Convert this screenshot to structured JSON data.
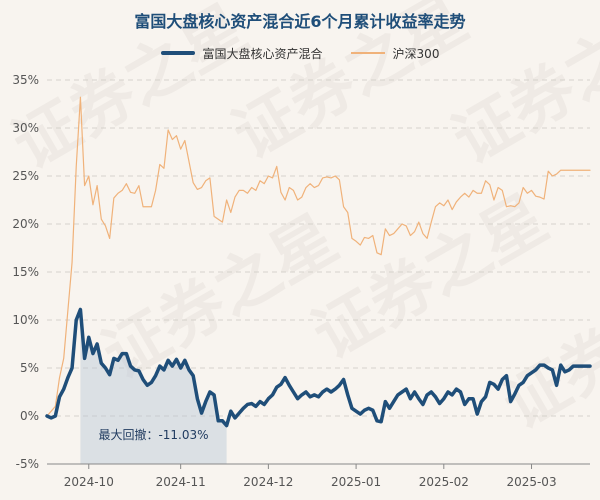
{
  "chart_data": {
    "type": "line",
    "title": "富国大盘核心资产混合近6个月累计收益率走势",
    "ylim": [
      -5,
      35
    ],
    "yticks": [
      35,
      30,
      25,
      20,
      15,
      10,
      5,
      0,
      -5
    ],
    "ytick_labels": [
      "35%",
      "30%",
      "25%",
      "20%",
      "15%",
      "10%",
      "5%",
      "0%",
      "-5%"
    ],
    "xticks": [
      {
        "index": 10,
        "label": "2024-10"
      },
      {
        "index": 32,
        "label": "2024-11"
      },
      {
        "index": 53,
        "label": "2024-12"
      },
      {
        "index": 74,
        "label": "2025-01"
      },
      {
        "index": 95,
        "label": "2025-02"
      },
      {
        "index": 116,
        "label": "2025-03"
      }
    ],
    "n_points": 131,
    "series": [
      {
        "name": "富国大盘核心资产混合",
        "color": "#1f4e79",
        "values": [
          0,
          -0.2,
          0,
          2,
          2.8,
          4,
          5,
          10,
          11.1,
          6,
          8.2,
          6.5,
          7.5,
          5.5,
          5,
          4.3,
          6,
          5.8,
          6.5,
          6.5,
          5.2,
          4.8,
          4.7,
          3.8,
          3.2,
          3.5,
          4.2,
          5.2,
          4.8,
          5.8,
          5.2,
          5.9,
          5,
          5.8,
          4.8,
          4.2,
          1.8,
          0.3,
          1.5,
          2.5,
          2.2,
          -0.5,
          -0.5,
          -1,
          0.5,
          -0.2,
          0.3,
          0.8,
          1.2,
          1.3,
          1,
          1.5,
          1.2,
          1.8,
          2.2,
          3,
          3.3,
          4,
          3.2,
          2.5,
          1.8,
          2.2,
          2.5,
          2,
          2.2,
          2,
          2.5,
          2.8,
          2.5,
          2.8,
          3.2,
          3.8,
          2.2,
          0.8,
          0.5,
          0.2,
          0.6,
          0.8,
          0.6,
          -0.5,
          -0.6,
          1.5,
          0.8,
          1.5,
          2.2,
          2.5,
          2.8,
          1.8,
          2.5,
          1.8,
          1.2,
          2.2,
          2.5,
          2,
          1.3,
          1.8,
          2.5,
          2.2,
          2.8,
          2.5,
          1.2,
          1.8,
          1.8,
          0.2,
          1.5,
          2,
          3.5,
          3.3,
          2.8,
          3.8,
          4.2,
          1.5,
          2.3,
          3.2,
          3.5,
          4.2,
          4.5,
          4.8,
          5.3,
          5.3,
          5,
          4.8,
          3.2,
          5.3,
          4.6,
          4.8,
          5.2,
          5.2,
          5.2,
          5.2,
          5.2
        ]
      },
      {
        "name": "沪深300",
        "color": "#f0b27a",
        "values": [
          0,
          0.5,
          1,
          4,
          6,
          11,
          16,
          26,
          33.2,
          24,
          25,
          22,
          24,
          20.5,
          19.8,
          18.5,
          22.7,
          23.2,
          23.5,
          24.2,
          23.3,
          23.2,
          24,
          21.8,
          21.8,
          21.8,
          23.5,
          26.2,
          25.8,
          29.8,
          28.8,
          29.2,
          27.8,
          28.7,
          26.5,
          24.3,
          23.6,
          23.8,
          24.5,
          24.8,
          20.8,
          20.5,
          20.2,
          22.5,
          21.2,
          22.8,
          23.5,
          23.5,
          23.2,
          23.8,
          23.5,
          24.5,
          24.2,
          25,
          24.8,
          26,
          23.3,
          22.5,
          23.8,
          23.5,
          22.5,
          22.8,
          23.8,
          24.2,
          23.8,
          24,
          24.8,
          24.9,
          24.8,
          25,
          24.6,
          21.8,
          21.2,
          18.5,
          18.2,
          17.8,
          18.6,
          18.5,
          18.8,
          17,
          16.8,
          19.5,
          18.8,
          19,
          19.5,
          20,
          19.8,
          18.8,
          19.2,
          20.2,
          19,
          18.5,
          20.2,
          21.8,
          22.2,
          21.9,
          22.5,
          21.5,
          22.3,
          22.8,
          23.2,
          22.8,
          23.5,
          23.2,
          23.2,
          24.5,
          24.1,
          22.5,
          23.8,
          23.5,
          21.8,
          21.9,
          21.8,
          22.2,
          23.8,
          23.2,
          23.5,
          22.9,
          22.8,
          22.6,
          25.5,
          25,
          25.2,
          25.6,
          25.6,
          25.6,
          25.6,
          25.6,
          25.6,
          25.6,
          25.6
        ]
      }
    ],
    "drawdown": {
      "start_index": 8,
      "end_index": 43,
      "label": "最大回撤：-11.03%"
    },
    "grid": true,
    "legend_position": "top-center"
  },
  "watermark": "证券之星",
  "colors": {
    "fund": "#1f4e79",
    "index": "#f0b27a",
    "drawdown_fill": "#b7c7d6",
    "grid": "#d6d2cc",
    "background": "#f8f4ef"
  }
}
